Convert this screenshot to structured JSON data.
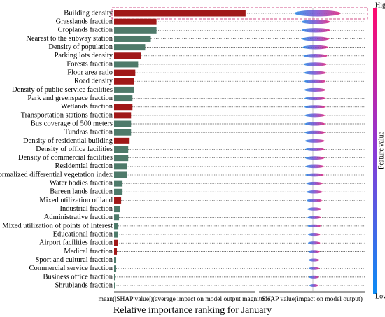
{
  "chart_data": {
    "type": "bar",
    "orientation": "horizontal",
    "title": "Relative importance ranking for January",
    "xlabel": "mean(|SHAP value|)(average impact on model output magnitude)",
    "x2label": "SHAP value(impact on model output)",
    "colorbar_label": "Feature value",
    "colorbar_high": "High",
    "colorbar_low": "Low",
    "categories": [
      "Building density",
      "Grasslands fraction",
      "Croplands fraction",
      "Nearest to the subway station",
      "Density of population",
      "Parking lots density",
      "Forests fraction",
      "Floor area ratio",
      "Road density",
      "Density of public service facilities",
      "Park and greenspace fraction",
      "Wetlands fraction",
      "Transportation stations fraction",
      "Bus coverage of 500 meters",
      "Tundras fraction",
      "Density of residential building",
      "Density of office facilities",
      "Density of commercial facilities",
      "Residential fraction",
      "Normalized differential vegetation index",
      "Water bodies fraction",
      "Bareen lands fraction",
      "Mixed utilization of land",
      "Industrial fraction",
      "Administrative fraction",
      "Mixed utilization of points of Interest",
      "Educational fraction",
      "Airport facilities fraction",
      "Medical fraction",
      "Sport and cultural fraction",
      "Commercial service fraction",
      "Business  office fraction",
      "Shrublands fraction"
    ],
    "values": [
      0.93,
      0.3,
      0.3,
      0.26,
      0.22,
      0.19,
      0.17,
      0.15,
      0.14,
      0.14,
      0.13,
      0.13,
      0.12,
      0.12,
      0.12,
      0.11,
      0.1,
      0.1,
      0.09,
      0.09,
      0.06,
      0.06,
      0.05,
      0.04,
      0.035,
      0.03,
      0.025,
      0.025,
      0.02,
      0.015,
      0.015,
      0.01,
      0.005
    ],
    "colors": [
      "#a01818",
      "#a01818",
      "#4e7a6a",
      "#4e7a6a",
      "#4e7a6a",
      "#a01818",
      "#4e7a6a",
      "#a01818",
      "#a01818",
      "#4e7a6a",
      "#4e7a6a",
      "#a01818",
      "#a01818",
      "#4e7a6a",
      "#4e7a6a",
      "#a01818",
      "#4e7a6a",
      "#4e7a6a",
      "#4e7a6a",
      "#4e7a6a",
      "#4e7a6a",
      "#4e7a6a",
      "#a01818",
      "#4e7a6a",
      "#4e7a6a",
      "#4e7a6a",
      "#4e7a6a",
      "#a01818",
      "#a01818",
      "#4e7a6a",
      "#4e7a6a",
      "#4e7a6a",
      "#4e7a6a"
    ],
    "xlim": [
      0,
      1
    ]
  }
}
